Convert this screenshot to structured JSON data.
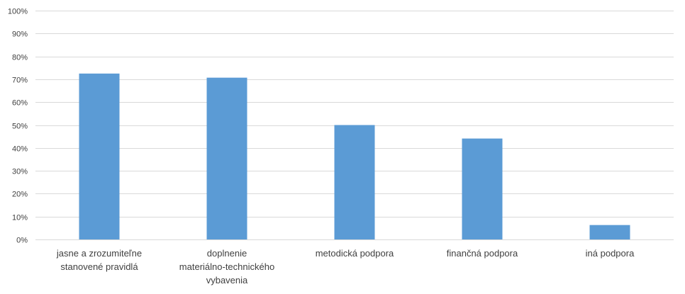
{
  "chart_data": {
    "type": "bar",
    "categories": [
      [
        "jasne a zrozumiteľne",
        "stanovené pravidlá"
      ],
      [
        "doplnenie",
        "materiálno-technického",
        "vybavenia"
      ],
      [
        "metodická podpora"
      ],
      [
        "finančná podpora"
      ],
      [
        "iná podpora"
      ]
    ],
    "values": [
      72.5,
      70.7,
      50,
      44.1,
      6.3
    ],
    "ylim": [
      0,
      100
    ],
    "y_ticks": [
      "0%",
      "10%",
      "20%",
      "30%",
      "40%",
      "50%",
      "60%",
      "70%",
      "80%",
      "90%",
      "100%"
    ],
    "y_tick_values": [
      0,
      10,
      20,
      30,
      40,
      50,
      60,
      70,
      80,
      90,
      100
    ],
    "title": "",
    "xlabel": "",
    "ylabel": "",
    "grid": true,
    "legend": "none",
    "bar_color": "#5b9bd5",
    "grid_color": "#d9d9d9",
    "text_color": "#404040"
  }
}
